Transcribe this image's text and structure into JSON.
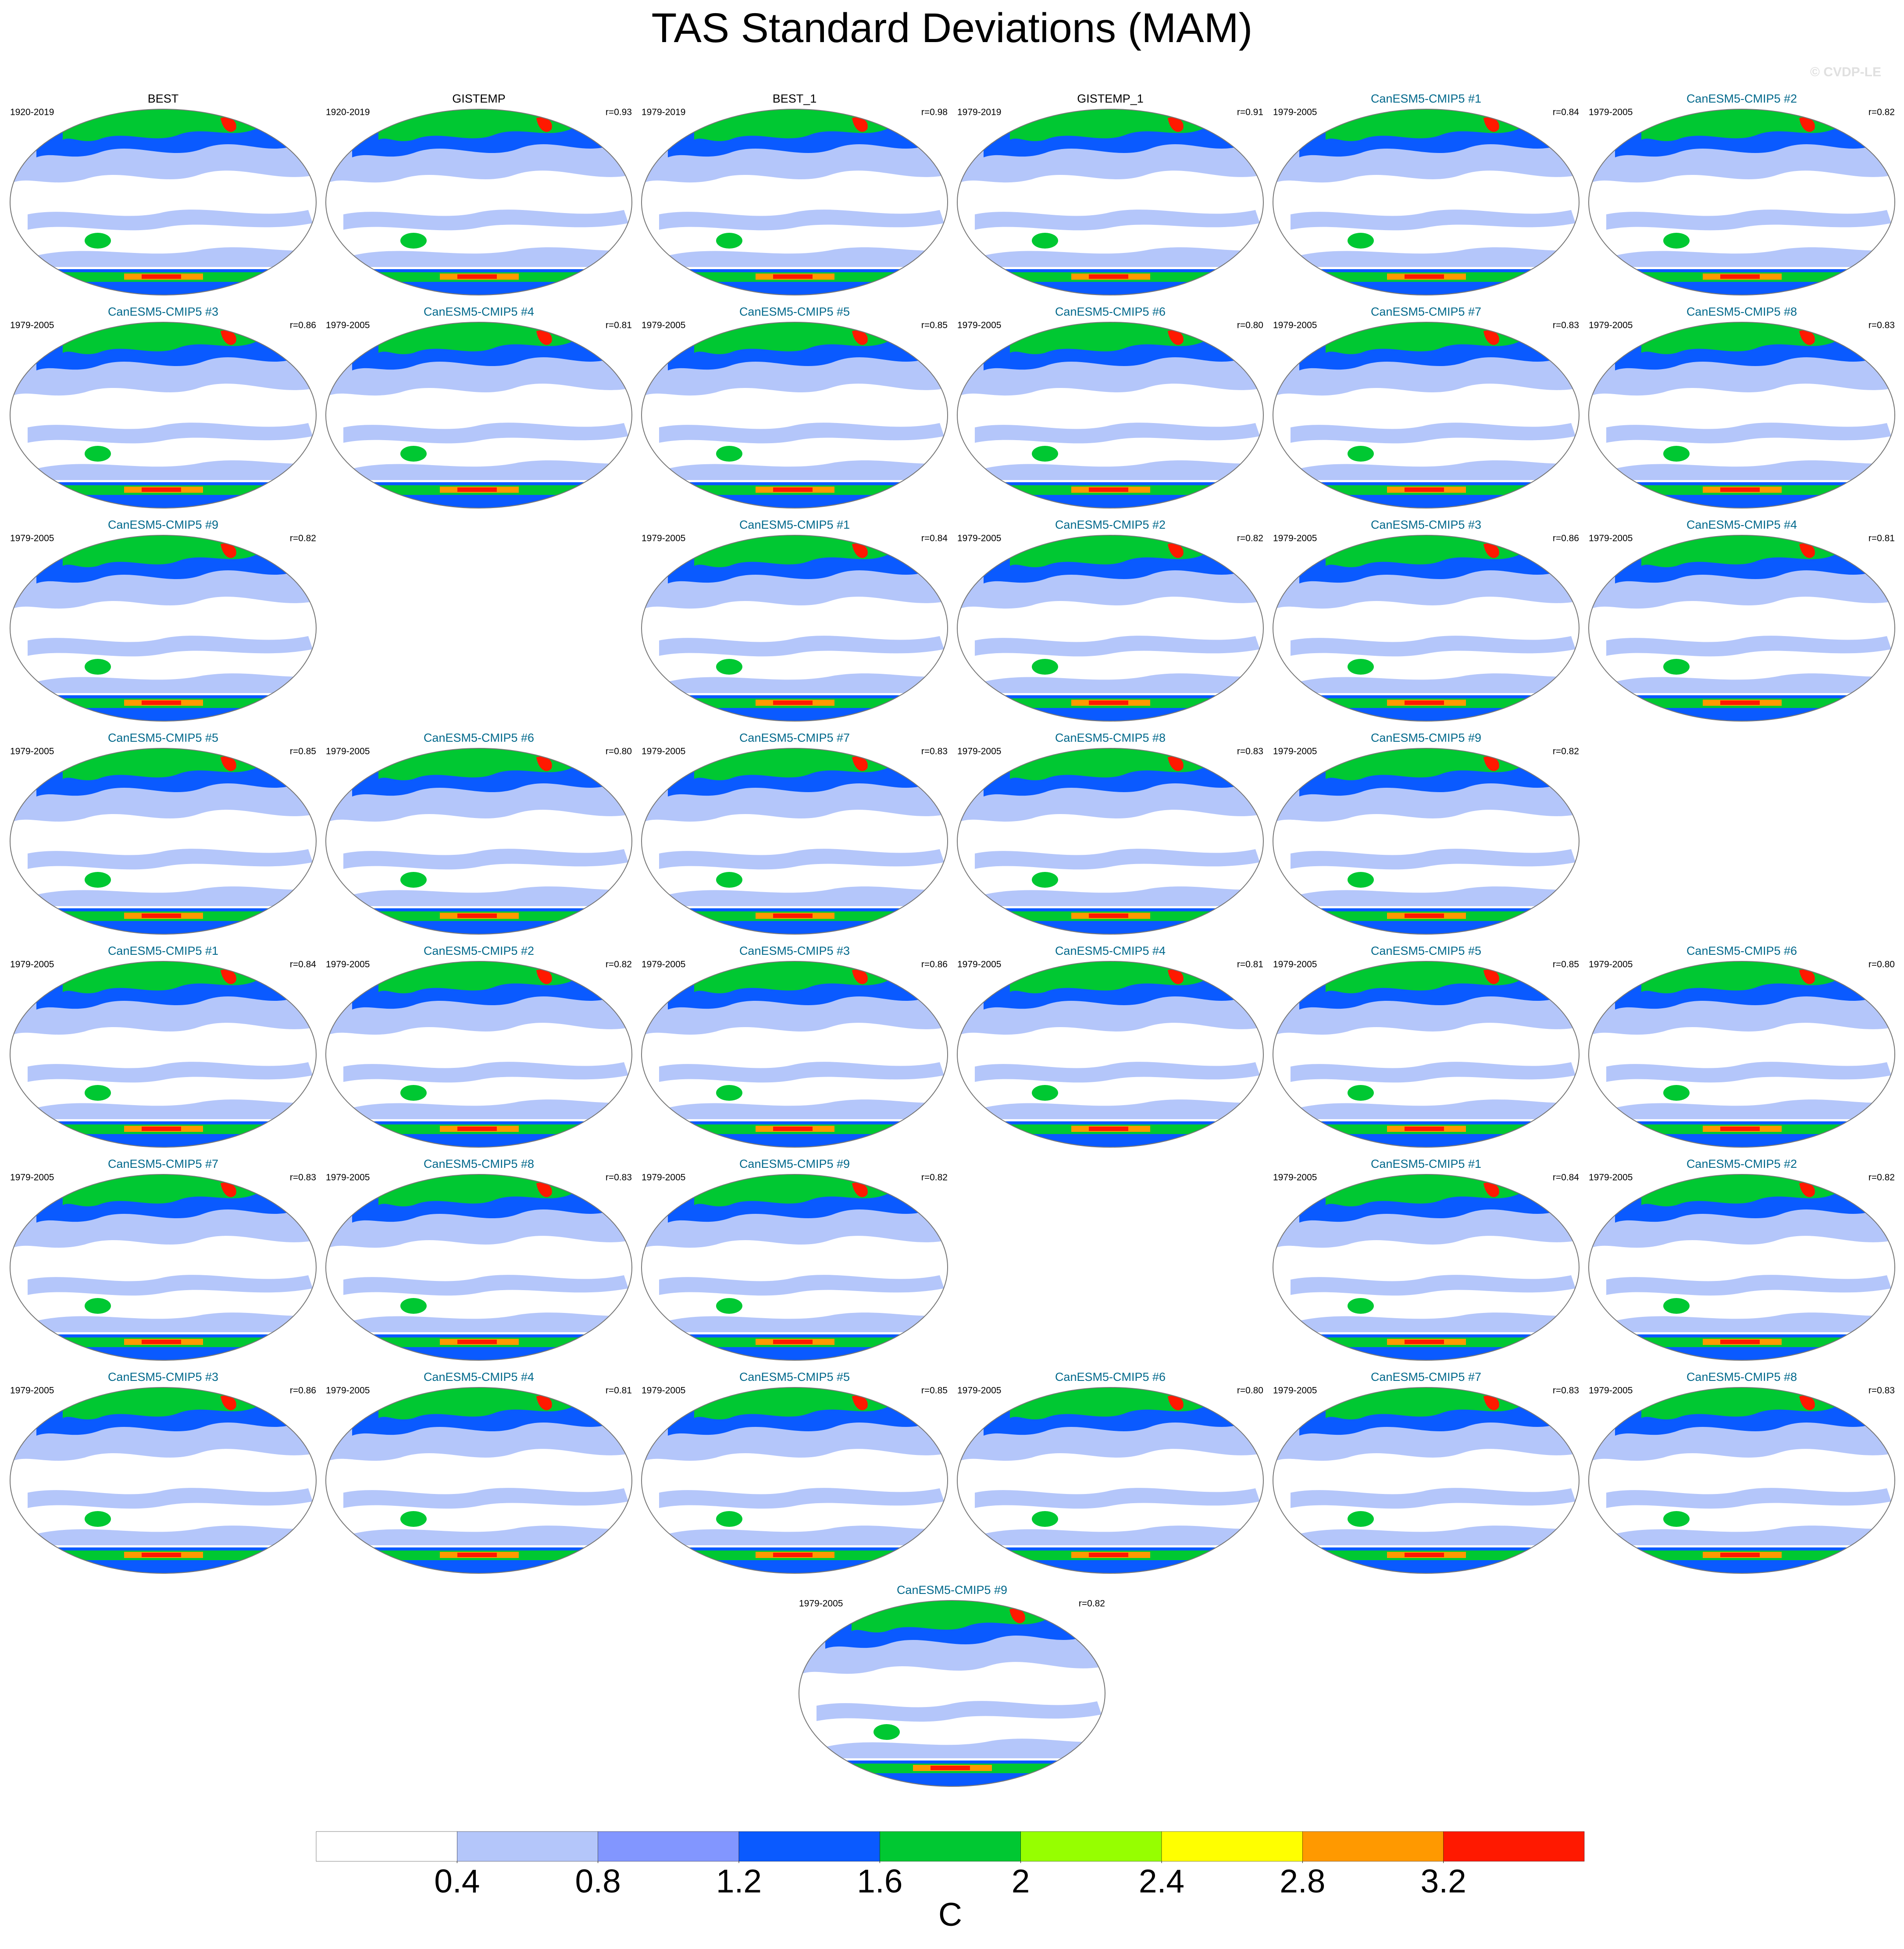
{
  "header": {
    "title": "TAS Standard Deviations (MAM)",
    "watermark": "© CVDP-LE"
  },
  "rows": [
    [
      {
        "title": "BEST",
        "period": "1920-2019",
        "color": "#000000"
      },
      {
        "title": "GISTEMP",
        "period": "1920-2019",
        "r": "r=0.93",
        "color": "#000000"
      },
      {
        "title": "BEST_1",
        "period": "1979-2019",
        "r": "r=0.98",
        "color": "#000000"
      },
      {
        "title": "GISTEMP_1",
        "period": "1979-2019",
        "r": "r=0.91",
        "color": "#000000"
      },
      {
        "title": "CanESM5-CMIP5 #1",
        "period": "1979-2005",
        "r": "r=0.84",
        "color": "#00688b"
      },
      {
        "title": "CanESM5-CMIP5 #2",
        "period": "1979-2005",
        "r": "r=0.82",
        "color": "#00688b"
      }
    ],
    [
      {
        "title": "CanESM5-CMIP5 #3",
        "period": "1979-2005",
        "r": "r=0.86",
        "color": "#00688b"
      },
      {
        "title": "CanESM5-CMIP5 #4",
        "period": "1979-2005",
        "r": "r=0.81",
        "color": "#00688b"
      },
      {
        "title": "CanESM5-CMIP5 #5",
        "period": "1979-2005",
        "r": "r=0.85",
        "color": "#00688b"
      },
      {
        "title": "CanESM5-CMIP5 #6",
        "period": "1979-2005",
        "r": "r=0.80",
        "color": "#00688b"
      },
      {
        "title": "CanESM5-CMIP5 #7",
        "period": "1979-2005",
        "r": "r=0.83",
        "color": "#00688b"
      },
      {
        "title": "CanESM5-CMIP5 #8",
        "period": "1979-2005",
        "r": "r=0.83",
        "color": "#00688b"
      }
    ],
    [
      {
        "title": "CanESM5-CMIP5 #9",
        "period": "1979-2005",
        "r": "r=0.82",
        "color": "#00688b"
      },
      null,
      {
        "title": "CanESM5-CMIP5 #1",
        "period": "1979-2005",
        "r": "r=0.84",
        "color": "#00688b"
      },
      {
        "title": "CanESM5-CMIP5 #2",
        "period": "1979-2005",
        "r": "r=0.82",
        "color": "#00688b"
      },
      {
        "title": "CanESM5-CMIP5 #3",
        "period": "1979-2005",
        "r": "r=0.86",
        "color": "#00688b"
      },
      {
        "title": "CanESM5-CMIP5 #4",
        "period": "1979-2005",
        "r": "r=0.81",
        "color": "#00688b"
      }
    ],
    [
      {
        "title": "CanESM5-CMIP5 #5",
        "period": "1979-2005",
        "r": "r=0.85",
        "color": "#00688b"
      },
      {
        "title": "CanESM5-CMIP5 #6",
        "period": "1979-2005",
        "r": "r=0.80",
        "color": "#00688b"
      },
      {
        "title": "CanESM5-CMIP5 #7",
        "period": "1979-2005",
        "r": "r=0.83",
        "color": "#00688b"
      },
      {
        "title": "CanESM5-CMIP5 #8",
        "period": "1979-2005",
        "r": "r=0.83",
        "color": "#00688b"
      },
      {
        "title": "CanESM5-CMIP5 #9",
        "period": "1979-2005",
        "r": "r=0.82",
        "color": "#00688b"
      },
      null
    ],
    [
      {
        "title": "CanESM5-CMIP5 #1",
        "period": "1979-2005",
        "r": "r=0.84",
        "color": "#00688b"
      },
      {
        "title": "CanESM5-CMIP5 #2",
        "period": "1979-2005",
        "r": "r=0.82",
        "color": "#00688b"
      },
      {
        "title": "CanESM5-CMIP5 #3",
        "period": "1979-2005",
        "r": "r=0.86",
        "color": "#00688b"
      },
      {
        "title": "CanESM5-CMIP5 #4",
        "period": "1979-2005",
        "r": "r=0.81",
        "color": "#00688b"
      },
      {
        "title": "CanESM5-CMIP5 #5",
        "period": "1979-2005",
        "r": "r=0.85",
        "color": "#00688b"
      },
      {
        "title": "CanESM5-CMIP5 #6",
        "period": "1979-2005",
        "r": "r=0.80",
        "color": "#00688b"
      }
    ],
    [
      {
        "title": "CanESM5-CMIP5 #7",
        "period": "1979-2005",
        "r": "r=0.83",
        "color": "#00688b"
      },
      {
        "title": "CanESM5-CMIP5 #8",
        "period": "1979-2005",
        "r": "r=0.83",
        "color": "#00688b"
      },
      {
        "title": "CanESM5-CMIP5 #9",
        "period": "1979-2005",
        "r": "r=0.82",
        "color": "#00688b"
      },
      null,
      {
        "title": "CanESM5-CMIP5 #1",
        "period": "1979-2005",
        "r": "r=0.84",
        "color": "#00688b"
      },
      {
        "title": "CanESM5-CMIP5 #2",
        "period": "1979-2005",
        "r": "r=0.82",
        "color": "#00688b"
      }
    ],
    [
      {
        "title": "CanESM5-CMIP5 #3",
        "period": "1979-2005",
        "r": "r=0.86",
        "color": "#00688b"
      },
      {
        "title": "CanESM5-CMIP5 #4",
        "period": "1979-2005",
        "r": "r=0.81",
        "color": "#00688b"
      },
      {
        "title": "CanESM5-CMIP5 #5",
        "period": "1979-2005",
        "r": "r=0.85",
        "color": "#00688b"
      },
      {
        "title": "CanESM5-CMIP5 #6",
        "period": "1979-2005",
        "r": "r=0.80",
        "color": "#00688b"
      },
      {
        "title": "CanESM5-CMIP5 #7",
        "period": "1979-2005",
        "r": "r=0.83",
        "color": "#00688b"
      },
      {
        "title": "CanESM5-CMIP5 #8",
        "period": "1979-2005",
        "r": "r=0.83",
        "color": "#00688b"
      }
    ],
    [
      {
        "title": "CanESM5-CMIP5 #9",
        "period": "1979-2005",
        "r": "r=0.82",
        "color": "#00688b"
      }
    ]
  ],
  "colorbar": {
    "lim": [
      0,
      3.6
    ],
    "ticks": [
      0.4,
      0.8,
      1.2,
      1.6,
      2,
      2.4,
      2.8,
      3.2
    ],
    "colors": [
      "#ffffff",
      "#b4c6fa",
      "#8296ff",
      "#0a5aff",
      "#00c832",
      "#96ff00",
      "#ffff00",
      "#ff9900",
      "#ff1900"
    ],
    "label": "C"
  }
}
